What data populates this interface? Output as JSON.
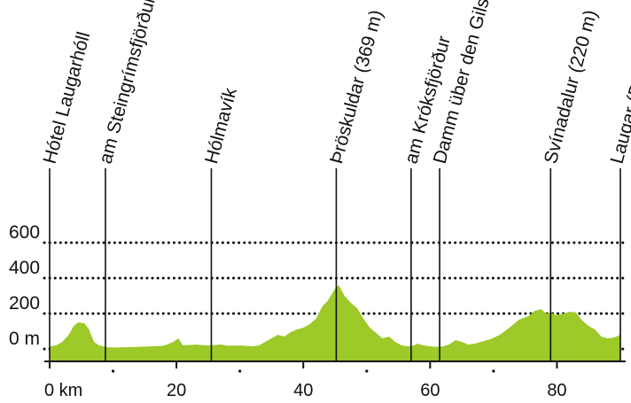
{
  "chart_data": {
    "type": "area",
    "title": "",
    "xlabel": "",
    "ylabel": "",
    "xlim": [
      0,
      90
    ],
    "ylim": [
      0,
      700
    ],
    "x_ticks": [
      {
        "value": 0,
        "label": "0 km"
      },
      {
        "value": 20,
        "label": "20"
      },
      {
        "value": 40,
        "label": "40"
      },
      {
        "value": 60,
        "label": "60"
      },
      {
        "value": 80,
        "label": "80"
      }
    ],
    "x_minor_ticks": [
      10,
      30,
      50,
      70
    ],
    "y_ticks": [
      {
        "value": 0,
        "label": "0 m"
      },
      {
        "value": 200,
        "label": "200"
      },
      {
        "value": 400,
        "label": "400"
      },
      {
        "value": 600,
        "label": "600"
      }
    ],
    "grid": "horizontal dotted at y ticks",
    "fill_color": "#9dc929",
    "axis_color": "#111111",
    "profile": {
      "x": [
        0,
        1,
        2,
        3,
        3.8,
        4.5,
        5.5,
        6.2,
        7,
        7.8,
        8.5,
        9,
        10,
        12,
        14,
        16,
        18,
        19.5,
        20.3,
        21,
        23,
        25,
        27,
        28,
        30,
        32,
        33,
        34,
        35,
        36,
        37,
        38,
        39,
        40,
        41,
        42,
        43,
        43.8,
        44.5,
        45,
        45.6,
        46.5,
        47.5,
        48.5,
        49.5,
        50.5,
        51.5,
        52.5,
        53.5,
        54.5,
        55.5,
        56.5,
        57.3,
        58,
        59,
        60,
        61,
        62,
        63,
        64,
        65,
        66,
        67,
        68,
        69.5,
        71,
        72.5,
        74,
        75.5,
        76.5,
        77.5,
        78.3,
        79,
        80,
        81,
        82,
        83,
        84,
        85,
        86,
        87,
        88,
        89,
        90
      ],
      "elevation": [
        15,
        20,
        40,
        80,
        130,
        150,
        145,
        110,
        40,
        20,
        15,
        10,
        8,
        10,
        12,
        15,
        18,
        40,
        60,
        20,
        25,
        20,
        25,
        18,
        20,
        15,
        20,
        40,
        60,
        80,
        70,
        95,
        110,
        120,
        140,
        170,
        240,
        270,
        310,
        340,
        360,
        300,
        260,
        230,
        170,
        120,
        90,
        60,
        70,
        40,
        20,
        15,
        18,
        30,
        20,
        15,
        12,
        15,
        25,
        50,
        40,
        25,
        30,
        40,
        55,
        80,
        120,
        165,
        185,
        215,
        225,
        200,
        205,
        190,
        200,
        210,
        205,
        160,
        130,
        110,
        70,
        60,
        65,
        80
      ]
    },
    "waypoints": [
      {
        "x": 0,
        "label": "Hótel Laugarhóll"
      },
      {
        "x": 8.8,
        "label": "am Steingrímsfjörður (Fjord)"
      },
      {
        "x": 25.5,
        "label": "Hólmavík"
      },
      {
        "x": 45.2,
        "label": "Þröskuldar (369 m)"
      },
      {
        "x": 57,
        "label": "am Króksfjörður"
      },
      {
        "x": 61.5,
        "label": "Damm über den Gilsfjörður"
      },
      {
        "x": 79,
        "label": "Svínadalur (220 m)"
      },
      {
        "x": 90,
        "label": "Laugar (Dalahótel)"
      }
    ]
  }
}
